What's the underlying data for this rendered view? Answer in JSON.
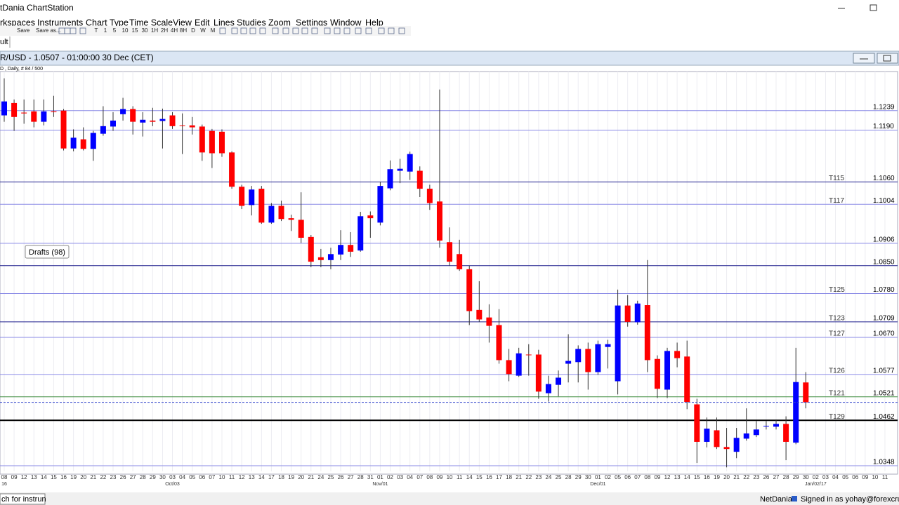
{
  "window": {
    "title": "tDania ChartStation"
  },
  "menu": [
    "rkspaces",
    "Instruments",
    "Chart Type",
    "Time Scale",
    "View",
    "Edit",
    "Lines",
    "Studies",
    "Zoom",
    "Settings",
    "Window",
    "Help"
  ],
  "toolbar": [
    "Save",
    "Save as...",
    "T",
    "1",
    "5",
    "10",
    "15",
    "30",
    "1H",
    "2H",
    "4H",
    "8H",
    "D",
    "W",
    "M"
  ],
  "tab": "ult",
  "chart_data": {
    "type": "candlestick",
    "title": "R/USD - 1.0507 - 01:00:00  30 Dec (CET)",
    "subtitle": "D , Daily, # 84 / 500",
    "annotation": "Drafts (98)",
    "categories": [
      "08",
      "09",
      "12",
      "13",
      "14",
      "15",
      "16",
      "19",
      "20",
      "21",
      "22",
      "23",
      "26",
      "27",
      "28",
      "29",
      "30",
      "03",
      "04",
      "05",
      "06",
      "07",
      "10",
      "11",
      "12",
      "13",
      "14",
      "17",
      "18",
      "19",
      "20",
      "21",
      "24",
      "25",
      "26",
      "27",
      "28",
      "31",
      "01",
      "02",
      "03",
      "04",
      "07",
      "08",
      "09",
      "10",
      "11",
      "14",
      "15",
      "16",
      "17",
      "18",
      "21",
      "22",
      "23",
      "24",
      "25",
      "28",
      "29",
      "30",
      "01",
      "02",
      "05",
      "06",
      "07",
      "08",
      "09",
      "12",
      "13",
      "14",
      "15",
      "16",
      "19",
      "20",
      "21",
      "22",
      "23",
      "26",
      "27",
      "28",
      "29",
      "30",
      "02",
      "03",
      "04",
      "05",
      "06",
      "09",
      "10",
      "11"
    ],
    "sublabels": [
      "16",
      null,
      null,
      null,
      null,
      null,
      null,
      null,
      null,
      null,
      null,
      null,
      null,
      null,
      null,
      null,
      null,
      "Oct/03",
      null,
      null,
      null,
      null,
      null,
      null,
      null,
      null,
      null,
      null,
      null,
      null,
      null,
      null,
      null,
      null,
      null,
      null,
      null,
      null,
      "Nov/01",
      null,
      null,
      null,
      null,
      null,
      null,
      null,
      null,
      null,
      null,
      null,
      null,
      null,
      null,
      null,
      null,
      null,
      null,
      null,
      null,
      null,
      "Dec/01",
      null,
      null,
      null,
      null,
      null,
      null,
      null,
      null,
      null,
      null,
      null,
      null,
      null,
      null,
      null,
      null,
      null,
      null,
      null,
      null,
      null,
      "Jan/02/17",
      null,
      null,
      null,
      null,
      null,
      null,
      null
    ],
    "open": [
      1.1227,
      1.1258,
      1.1234,
      1.1237,
      1.1211,
      1.1237,
      1.1239,
      1.1144,
      1.1167,
      1.1143,
      1.1181,
      1.1199,
      1.123,
      1.1243,
      1.1209,
      1.1214,
      1.1213,
      1.1227,
      1.1202,
      1.1202,
      1.1199,
      1.1188,
      1.1186,
      1.1134,
      1.1048,
      1.1002,
      1.1043,
      1.0958,
      1.1,
      1.0969,
      1.0965,
      1.0922,
      1.0871,
      1.0864,
      1.0878,
      1.0902,
      1.0888,
      1.0976,
      1.0958,
      1.1044,
      1.1088,
      1.1086,
      1.1088,
      1.1043,
      1.1011,
      1.0909,
      1.0879,
      1.0841,
      1.0739,
      1.072,
      1.0701,
      1.0613,
      1.0574,
      1.0627,
      1.0627,
      1.053,
      1.0551,
      1.0604,
      1.0608,
      1.0641,
      1.0583,
      1.0646,
      1.056,
      1.075,
      1.0708,
      1.0751,
      1.0616,
      1.0539,
      1.0636,
      1.0622,
      1.0502,
      1.0408,
      1.0437,
      1.0395,
      1.0383,
      1.0416,
      1.0425,
      1.0448,
      1.0446,
      1.0453,
      1.0406,
      1.0557,
      null,
      null,
      null,
      null,
      null,
      null,
      null,
      null
    ],
    "high": [
      1.132,
      1.1267,
      1.1267,
      1.1267,
      1.1267,
      1.1276,
      1.1243,
      1.1192,
      1.1197,
      1.1188,
      1.125,
      1.1235,
      1.1271,
      1.125,
      1.1235,
      1.1246,
      1.1244,
      1.1235,
      1.1232,
      1.1223,
      1.1204,
      1.1193,
      1.1192,
      1.1137,
      1.1053,
      1.105,
      1.105,
      1.1007,
      1.1013,
      1.0978,
      1.1034,
      1.0927,
      1.0892,
      1.0895,
      1.0939,
      1.0934,
      1.0985,
      1.0986,
      1.106,
      1.1114,
      1.1118,
      1.1136,
      1.1099,
      1.1053,
      1.1292,
      1.0946,
      1.0915,
      1.085,
      1.0811,
      1.0753,
      1.0741,
      1.0641,
      1.0644,
      1.0653,
      1.0639,
      1.0574,
      1.0587,
      1.0678,
      1.065,
      1.0657,
      1.0662,
      1.0664,
      1.079,
      1.0776,
      1.0762,
      1.0864,
      1.0625,
      1.0644,
      1.0657,
      1.0662,
      1.0516,
      1.0469,
      1.0469,
      1.0443,
      1.0443,
      1.0492,
      1.046,
      1.046,
      1.0464,
      1.0472,
      1.0644,
      1.0583,
      null,
      null,
      null,
      null,
      null,
      null,
      null,
      null
    ],
    "low": [
      1.1211,
      1.1188,
      1.1206,
      1.1197,
      1.1202,
      1.1223,
      1.1139,
      1.1137,
      1.1139,
      1.1113,
      1.1176,
      1.1188,
      1.1214,
      1.1179,
      1.1174,
      1.12,
      1.1144,
      1.1193,
      1.113,
      1.1179,
      1.1113,
      1.1095,
      1.1123,
      1.1043,
      1.0992,
      1.0976,
      1.0955,
      1.0955,
      1.0962,
      1.0937,
      1.0907,
      1.0846,
      1.0846,
      1.0841,
      1.0864,
      1.0872,
      1.0885,
      1.092,
      1.0951,
      1.1039,
      1.1057,
      1.1065,
      1.1022,
      1.099,
      1.0895,
      1.085,
      1.0837,
      1.0701,
      1.0709,
      1.0657,
      1.0604,
      1.056,
      1.0571,
      1.0574,
      1.0516,
      1.0509,
      1.0522,
      1.0557,
      1.0557,
      1.0539,
      1.0576,
      1.0592,
      1.0527,
      1.0697,
      1.0702,
      1.0583,
      1.0518,
      1.0518,
      1.0595,
      1.049,
      1.0355,
      1.0394,
      1.039,
      1.0344,
      1.0367,
      1.0411,
      1.042,
      1.0439,
      1.0439,
      1.0362,
      1.0402,
      1.0492,
      null,
      null,
      null,
      null,
      null,
      null,
      null,
      null
    ],
    "close": [
      1.1262,
      1.1223,
      1.1232,
      1.1211,
      1.1237,
      1.1235,
      1.1144,
      1.1171,
      1.1143,
      1.1183,
      1.12,
      1.1214,
      1.1243,
      1.1211,
      1.1216,
      1.1211,
      1.1218,
      1.12,
      1.1201,
      1.1197,
      1.1134,
      1.1132,
      1.1132,
      1.1048,
      1.1,
      1.1041,
      1.0958,
      1.1,
      1.0967,
      1.0965,
      1.092,
      1.086,
      1.0864,
      1.0879,
      1.0902,
      1.0885,
      1.0974,
      1.0969,
      1.105,
      1.1092,
      1.1093,
      1.113,
      1.1043,
      1.1007,
      1.0913,
      1.086,
      1.0841,
      1.0736,
      1.0715,
      1.0699,
      1.0613,
      1.0578,
      1.063,
      1.0626,
      1.0534,
      1.0553,
      1.0569,
      1.0611,
      1.0641,
      1.0583,
      1.0653,
      1.0653,
      1.075,
      1.0709,
      1.0755,
      1.0613,
      1.0541,
      1.0636,
      1.0618,
      1.0508,
      1.0408,
      1.0441,
      1.0395,
      1.039,
      1.0418,
      1.0429,
      1.0439,
      1.0448,
      1.0453,
      1.0408,
      1.0558,
      1.0507,
      null,
      null,
      null,
      null,
      null,
      null,
      null,
      null
    ],
    "up_color": "#0000ff",
    "down_color": "#ff0000",
    "ylim": [
      1.0334,
      1.1337
    ],
    "grid": true,
    "levels": [
      {
        "value": 1.1239,
        "color": "#8a8ae6"
      },
      {
        "value": 1.119,
        "label": "1.1190",
        "color": "#8a8ae6"
      },
      {
        "value": 1.106,
        "label": "1.1060",
        "tag": "T115",
        "color": "#1c1c8c"
      },
      {
        "value": 1.1004,
        "tag": "T117",
        "color": "#8a8ae6"
      },
      {
        "value": 1.0906,
        "color": "#8a8ae6"
      },
      {
        "value": 1.085,
        "label": "1.0850",
        "color": "#1c1c8c"
      },
      {
        "value": 1.078,
        "label": "1.0780",
        "tag": "T125",
        "color": "#8a8ae6"
      },
      {
        "value": 1.0709,
        "tag": "T123",
        "color": "#1c1c8c"
      },
      {
        "value": 1.067,
        "label": "1.0670",
        "tag": "T127",
        "color": "#8a8ae6"
      },
      {
        "value": 1.0577,
        "tag": "T126",
        "color": "#8a8ae6"
      },
      {
        "value": 1.0521,
        "tag": "T121",
        "color": "#3a8a3a"
      },
      {
        "value": 1.0462,
        "tag": "T129",
        "color": "#000000",
        "bold": true
      },
      {
        "value": 1.0348,
        "color": "#8a8ae6"
      }
    ]
  },
  "status": {
    "search": "ch for instrun",
    "brand": "NetDania",
    "user": "Signed in as yohay@forexcrun"
  }
}
